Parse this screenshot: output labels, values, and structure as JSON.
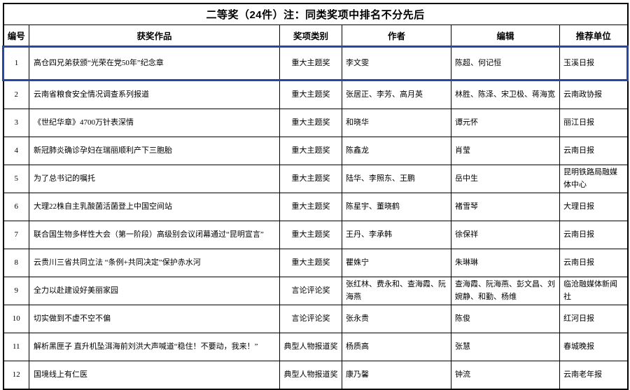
{
  "header": {
    "title": "二等奖（24件）注：同类奖项中排名不分先后"
  },
  "table": {
    "columns": [
      "编号",
      "获奖作品",
      "奖项类别",
      "作者",
      "编辑",
      "推荐单位"
    ],
    "rows": [
      {
        "no": "1",
        "work": "高仓四兄弟获颁“光荣在党50年”纪念章",
        "category": "重大主题奖",
        "author": "李文雯",
        "editor": "陈超、何记恒",
        "unit": "玉溪日报",
        "highlighted": true
      },
      {
        "no": "2",
        "work": "云南省粮食安全情况调查系列报道",
        "category": "重大主题奖",
        "author": "张居正、李芳、高月英",
        "editor": "林胜、陈泽、宋卫极、蒋海宽",
        "unit": "云南政协报",
        "highlighted": false
      },
      {
        "no": "3",
        "work": "《世纪华章》4700万针表深情",
        "category": "重大主题奖",
        "author": "和晓华",
        "editor": "谭元怀",
        "unit": "丽江日报",
        "highlighted": false
      },
      {
        "no": "4",
        "work": "新冠肺炎确诊孕妇在瑞丽顺利产下三胞胎",
        "category": "重大主题奖",
        "author": "陈鑫龙",
        "editor": "肖莹",
        "unit": "云南日报",
        "highlighted": false
      },
      {
        "no": "5",
        "work": "为了总书记的嘱托",
        "category": "重大主题奖",
        "author": "陆华、李照东、王鹏",
        "editor": "岳中生",
        "unit": "昆明铁路局融媒体中心",
        "highlighted": false
      },
      {
        "no": "6",
        "work": "大理22株自主乳酸菌活菌登上中国空间站",
        "category": "重大主题奖",
        "author": "陈星宇、董晓鹤",
        "editor": "褚雪琴",
        "unit": "大理日报",
        "highlighted": false
      },
      {
        "no": "7",
        "work": "联合国生物多样性大会（第一阶段）高级别会议闭幕通过“昆明宣言”",
        "category": "重大主题奖",
        "author": "王丹、李承韩",
        "editor": "徐保祥",
        "unit": "云南日报",
        "highlighted": false
      },
      {
        "no": "8",
        "work": "云贵川三省共同立法 “条例+共同决定”保护赤水河",
        "category": "重大主题奖",
        "author": "瞿姝宁",
        "editor": "朱琳琳",
        "unit": "云南日报",
        "highlighted": false
      },
      {
        "no": "9",
        "work": "全力以赴建设好美丽家园",
        "category": "言论评论奖",
        "author": "张红林、费永和、查海霞、阮海燕",
        "editor": "查海霞、阮海燕、彭文昌、刘婉静、和勤、杨维",
        "unit": "临沧融媒体新闻社",
        "highlighted": false
      },
      {
        "no": "10",
        "work": "切实做到不虚不空不偏",
        "category": "言论评论奖",
        "author": "张永贵",
        "editor": "陈俊",
        "unit": "红河日报",
        "highlighted": false
      },
      {
        "no": "11",
        "work": "解析黑匣子 直升机坠洱海前刘洪大声喊道“稳住！不要动，我来！”",
        "category": "典型人物报道奖",
        "author": "杨质高",
        "editor": "张慧",
        "unit": "春城晚报",
        "highlighted": false
      },
      {
        "no": "12",
        "work": "国境线上有仁医",
        "category": "典型人物报道奖",
        "author": "康乃馨",
        "editor": "钟流",
        "unit": "云南老年报",
        "highlighted": false
      }
    ]
  },
  "colors": {
    "highlight": "#2646a8",
    "border": "#000000"
  }
}
